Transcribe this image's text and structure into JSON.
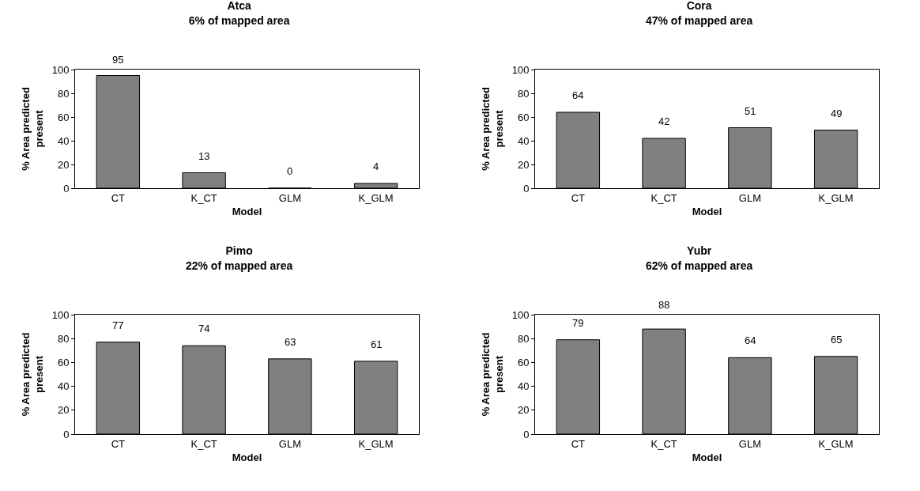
{
  "chart_data": [
    {
      "type": "bar",
      "title": "Atca",
      "subtitle": "6% of mapped area",
      "xlabel": "Model",
      "ylabel": "% Area predicted present",
      "categories": [
        "CT",
        "K_CT",
        "GLM",
        "K_GLM"
      ],
      "values": [
        95,
        13,
        0,
        4
      ],
      "color": "#808080",
      "ylim": [
        0,
        100
      ],
      "yticks": [
        0,
        20,
        40,
        60,
        80,
        100
      ],
      "data_labels": true
    },
    {
      "type": "bar",
      "title": "Cora",
      "subtitle": "47% of mapped area",
      "xlabel": "Model",
      "ylabel": "% Area predicted present",
      "categories": [
        "CT",
        "K_CT",
        "GLM",
        "K_GLM"
      ],
      "values": [
        64,
        42,
        51,
        49
      ],
      "color": "#808080",
      "ylim": [
        0,
        100
      ],
      "yticks": [
        0,
        20,
        40,
        60,
        80,
        100
      ],
      "data_labels": true
    },
    {
      "type": "bar",
      "title": "Pimo",
      "subtitle": "22% of mapped area",
      "xlabel": "Model",
      "ylabel": "% Area predicted present",
      "categories": [
        "CT",
        "K_CT",
        "GLM",
        "K_GLM"
      ],
      "values": [
        77,
        74,
        63,
        61
      ],
      "color": "#808080",
      "ylim": [
        0,
        100
      ],
      "yticks": [
        0,
        20,
        40,
        60,
        80,
        100
      ],
      "data_labels": true
    },
    {
      "type": "bar",
      "title": "Yubr",
      "subtitle": "62% of mapped area",
      "xlabel": "Model",
      "ylabel": "% Area predicted present",
      "categories": [
        "CT",
        "K_CT",
        "GLM",
        "K_GLM"
      ],
      "values": [
        79,
        88,
        64,
        65
      ],
      "color": "#808080",
      "ylim": [
        0,
        100
      ],
      "yticks": [
        0,
        20,
        40,
        60,
        80,
        100
      ],
      "data_labels": true
    }
  ]
}
